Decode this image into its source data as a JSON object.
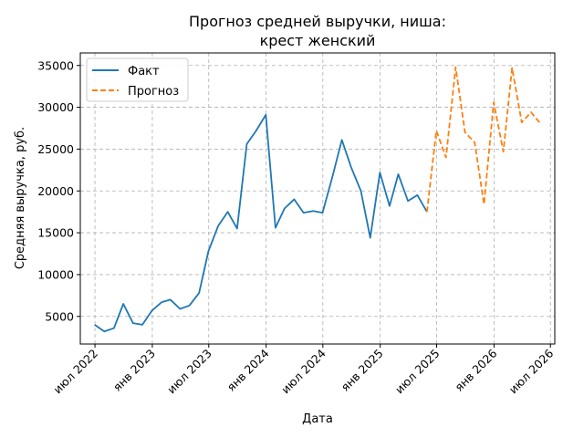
{
  "chart_data": {
    "type": "line",
    "title_line1": "Прогноз средней выручки, ниша:",
    "title_line2": "крест женский",
    "xlabel": "Дата",
    "ylabel": "Средняя выручка, руб.",
    "xlim": [
      "2022-05-15",
      "2026-07-15"
    ],
    "ylim": [
      1700,
      36500
    ],
    "x_ticks": [
      {
        "date": "2022-07-01",
        "label": "июл 2022"
      },
      {
        "date": "2023-01-01",
        "label": "янв 2023"
      },
      {
        "date": "2023-07-01",
        "label": "июл 2023"
      },
      {
        "date": "2024-01-01",
        "label": "янв 2024"
      },
      {
        "date": "2024-07-01",
        "label": "июл 2024"
      },
      {
        "date": "2025-01-01",
        "label": "янв 2025"
      },
      {
        "date": "2025-07-01",
        "label": "июл 2025"
      },
      {
        "date": "2026-01-01",
        "label": "янв 2026"
      },
      {
        "date": "2026-07-01",
        "label": "июл 2026"
      }
    ],
    "y_ticks": [
      5000,
      10000,
      15000,
      20000,
      25000,
      30000,
      35000
    ],
    "grid": true,
    "legend_position": "top-left",
    "series": [
      {
        "name": "Факт",
        "color": "#1f77b4",
        "style": "solid",
        "points": [
          {
            "x": "2022-06-30",
            "y": 4000
          },
          {
            "x": "2022-07-31",
            "y": 3200
          },
          {
            "x": "2022-08-31",
            "y": 3600
          },
          {
            "x": "2022-09-30",
            "y": 6500
          },
          {
            "x": "2022-10-31",
            "y": 4200
          },
          {
            "x": "2022-11-30",
            "y": 4000
          },
          {
            "x": "2022-12-31",
            "y": 5700
          },
          {
            "x": "2023-01-31",
            "y": 6700
          },
          {
            "x": "2023-02-28",
            "y": 7000
          },
          {
            "x": "2023-03-31",
            "y": 5900
          },
          {
            "x": "2023-04-30",
            "y": 6300
          },
          {
            "x": "2023-05-31",
            "y": 7800
          },
          {
            "x": "2023-06-30",
            "y": 12800
          },
          {
            "x": "2023-07-31",
            "y": 15800
          },
          {
            "x": "2023-08-31",
            "y": 17500
          },
          {
            "x": "2023-09-30",
            "y": 15500
          },
          {
            "x": "2023-10-31",
            "y": 25600
          },
          {
            "x": "2023-11-30",
            "y": 27200
          },
          {
            "x": "2023-12-31",
            "y": 29100
          },
          {
            "x": "2024-01-31",
            "y": 15600
          },
          {
            "x": "2024-02-29",
            "y": 17900
          },
          {
            "x": "2024-03-31",
            "y": 19000
          },
          {
            "x": "2024-04-30",
            "y": 17400
          },
          {
            "x": "2024-05-31",
            "y": 17600
          },
          {
            "x": "2024-06-30",
            "y": 17400
          },
          {
            "x": "2024-07-31",
            "y": 21600
          },
          {
            "x": "2024-08-31",
            "y": 26100
          },
          {
            "x": "2024-09-30",
            "y": 22800
          },
          {
            "x": "2024-10-31",
            "y": 20000
          },
          {
            "x": "2024-11-30",
            "y": 14400
          },
          {
            "x": "2024-12-31",
            "y": 22200
          },
          {
            "x": "2025-01-31",
            "y": 18200
          },
          {
            "x": "2025-02-28",
            "y": 22000
          },
          {
            "x": "2025-03-31",
            "y": 18800
          },
          {
            "x": "2025-04-30",
            "y": 19500
          },
          {
            "x": "2025-05-31",
            "y": 17500
          }
        ]
      },
      {
        "name": "Прогноз",
        "color": "#ff7f0e",
        "style": "dashed",
        "points": [
          {
            "x": "2025-05-31",
            "y": 17500
          },
          {
            "x": "2025-06-30",
            "y": 27200
          },
          {
            "x": "2025-07-31",
            "y": 24000
          },
          {
            "x": "2025-08-31",
            "y": 34800
          },
          {
            "x": "2025-09-30",
            "y": 27000
          },
          {
            "x": "2025-10-31",
            "y": 25800
          },
          {
            "x": "2025-11-30",
            "y": 18400
          },
          {
            "x": "2025-12-31",
            "y": 30600
          },
          {
            "x": "2026-01-31",
            "y": 24700
          },
          {
            "x": "2026-02-28",
            "y": 34700
          },
          {
            "x": "2026-03-31",
            "y": 28200
          },
          {
            "x": "2026-04-30",
            "y": 29400
          },
          {
            "x": "2026-05-31",
            "y": 28000
          }
        ]
      }
    ]
  }
}
